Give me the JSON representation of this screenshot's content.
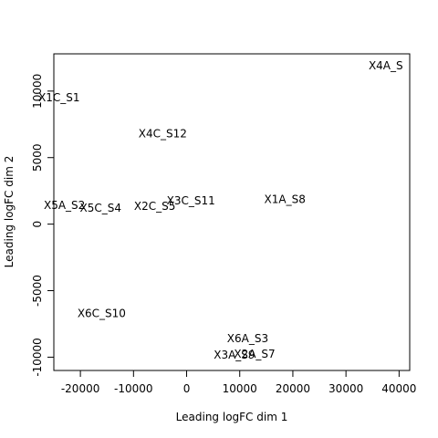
{
  "chart_data": {
    "type": "scatter",
    "title": "",
    "xlabel": "Leading logFC dim 1",
    "ylabel": "Leading logFC dim 2",
    "xlim": [
      -25000,
      42000
    ],
    "ylim": [
      -11000,
      12800
    ],
    "xticks": [
      -20000,
      -10000,
      0,
      10000,
      20000,
      30000,
      40000
    ],
    "xtick_labels": [
      "-20000",
      "-10000",
      "0",
      "10000",
      "20000",
      "30000",
      "40000"
    ],
    "yticks": [
      -10000,
      -5000,
      0,
      5000,
      10000
    ],
    "ytick_labels": [
      "-10000",
      "-5000",
      "0",
      "5000",
      "10000"
    ],
    "grid": false,
    "points": [
      {
        "label": "X4A_S",
        "x": 37500,
        "y": 11900
      },
      {
        "label": "X1C_S1",
        "x": -24000,
        "y": 9500
      },
      {
        "label": "X4C_S12",
        "x": -4500,
        "y": 6800
      },
      {
        "label": "X1A_S8",
        "x": 18500,
        "y": 1850
      },
      {
        "label": "X3C_S11",
        "x": 800,
        "y": 1750
      },
      {
        "label": "X2C_S5",
        "x": -6000,
        "y": 1350
      },
      {
        "label": "X5C_S4",
        "x": -16200,
        "y": 1200
      },
      {
        "label": "X5A_S2",
        "x": -23000,
        "y": 1400
      },
      {
        "label": "X6C_S10",
        "x": -16000,
        "y": -6700
      },
      {
        "label": "X6A_S3",
        "x": 11500,
        "y": -8600
      },
      {
        "label": "X2A_S7",
        "x": 12800,
        "y": -9750
      },
      {
        "label": "X3A_S9",
        "x": 9000,
        "y": -9850
      }
    ]
  }
}
